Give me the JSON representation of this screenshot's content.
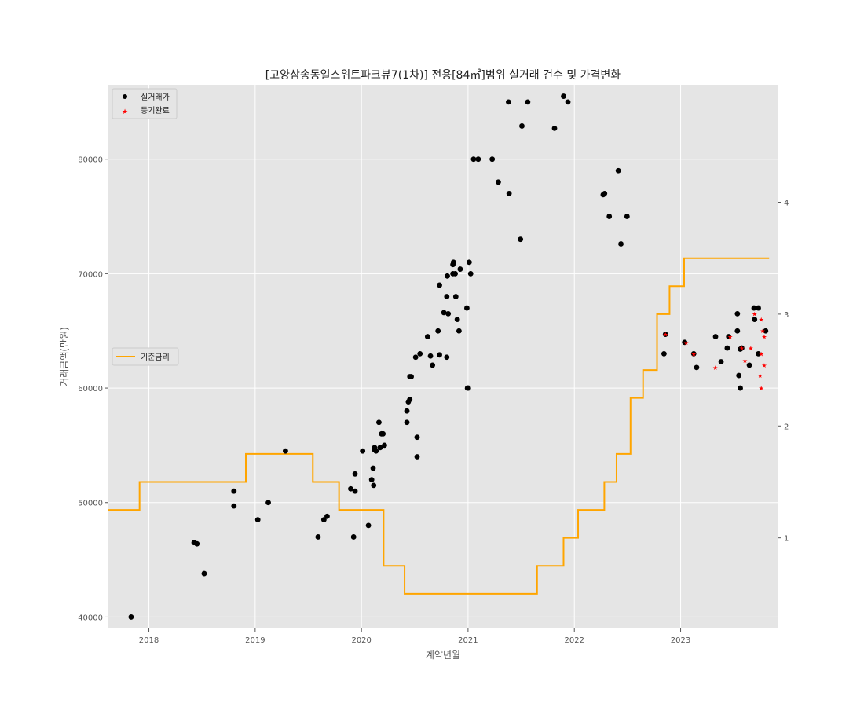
{
  "chart_data": {
    "type": "scatter",
    "title": "[고양삼송동일스위트파크뷰7(1차)] 전용[84㎡]범위 실거래 건수 및 가격변화",
    "xlabel": "계약년월",
    "ylabel": "거래금액(만원)",
    "xlim": [
      "2017-08-15",
      "2023-11-30"
    ],
    "ylim": [
      39000,
      86500
    ],
    "y2lim": [
      0.19,
      5.05
    ],
    "x_ticks": [
      "2018",
      "2019",
      "2020",
      "2021",
      "2022",
      "2023"
    ],
    "y_ticks": [
      40000,
      50000,
      60000,
      70000,
      80000
    ],
    "y2_ticks": [
      1,
      2,
      3,
      4
    ],
    "grid": true,
    "legend_series_placement": "top-left",
    "legend_rate_placement": "center-left",
    "series": [
      {
        "name": "실거래가",
        "color": "#000000",
        "marker": "circle",
        "points": [
          [
            "2017-11-01",
            40000
          ],
          [
            "2018-06-05",
            46500
          ],
          [
            "2018-06-15",
            46400
          ],
          [
            "2018-07-10",
            43800
          ],
          [
            "2018-10-20",
            51000
          ],
          [
            "2018-10-20",
            49700
          ],
          [
            "2019-01-10",
            48500
          ],
          [
            "2019-02-15",
            50000
          ],
          [
            "2019-04-15",
            54500
          ],
          [
            "2019-08-05",
            47000
          ],
          [
            "2019-08-25",
            48500
          ],
          [
            "2019-09-05",
            48800
          ],
          [
            "2019-11-25",
            51200
          ],
          [
            "2019-12-05",
            47000
          ],
          [
            "2019-12-10",
            51000
          ],
          [
            "2019-12-10",
            52500
          ],
          [
            "2020-01-05",
            54500
          ],
          [
            "2020-01-25",
            48000
          ],
          [
            "2020-02-05",
            52000
          ],
          [
            "2020-02-10",
            53000
          ],
          [
            "2020-02-12",
            51500
          ],
          [
            "2020-02-15",
            54600
          ],
          [
            "2020-02-15",
            54800
          ],
          [
            "2020-02-20",
            54500
          ],
          [
            "2020-03-01",
            57000
          ],
          [
            "2020-03-05",
            54800
          ],
          [
            "2020-03-10",
            56000
          ],
          [
            "2020-03-15",
            56000
          ],
          [
            "2020-03-20",
            55000
          ],
          [
            "2020-06-05",
            58000
          ],
          [
            "2020-06-05",
            57000
          ],
          [
            "2020-06-10",
            58800
          ],
          [
            "2020-06-15",
            59000
          ],
          [
            "2020-06-15",
            61000
          ],
          [
            "2020-06-20",
            61000
          ],
          [
            "2020-07-05",
            62700
          ],
          [
            "2020-07-10",
            54000
          ],
          [
            "2020-07-10",
            55700
          ],
          [
            "2020-07-20",
            63000
          ],
          [
            "2020-08-15",
            64500
          ],
          [
            "2020-08-25",
            62800
          ],
          [
            "2020-09-01",
            62000
          ],
          [
            "2020-09-20",
            65000
          ],
          [
            "2020-09-25",
            69000
          ],
          [
            "2020-09-25",
            62900
          ],
          [
            "2020-10-10",
            66600
          ],
          [
            "2020-10-20",
            62700
          ],
          [
            "2020-10-20",
            68000
          ],
          [
            "2020-10-22",
            69800
          ],
          [
            "2020-10-25",
            66500
          ],
          [
            "2020-11-10",
            70000
          ],
          [
            "2020-11-10",
            70800
          ],
          [
            "2020-11-12",
            71000
          ],
          [
            "2020-11-18",
            70000
          ],
          [
            "2020-11-20",
            68000
          ],
          [
            "2020-11-25",
            66000
          ],
          [
            "2020-12-01",
            65000
          ],
          [
            "2020-12-05",
            70400
          ],
          [
            "2020-12-28",
            67000
          ],
          [
            "2020-12-30",
            60000
          ],
          [
            "2021-01-02",
            60000
          ],
          [
            "2021-01-05",
            71000
          ],
          [
            "2021-01-10",
            70000
          ],
          [
            "2021-01-20",
            80000
          ],
          [
            "2021-02-05",
            80000
          ],
          [
            "2021-03-25",
            80000
          ],
          [
            "2021-04-15",
            78000
          ],
          [
            "2021-05-20",
            85000
          ],
          [
            "2021-05-22",
            77000
          ],
          [
            "2021-06-30",
            73000
          ],
          [
            "2021-07-05",
            82900
          ],
          [
            "2021-07-25",
            85000
          ],
          [
            "2021-10-25",
            82700
          ],
          [
            "2021-11-25",
            85500
          ],
          [
            "2021-12-10",
            85000
          ],
          [
            "2022-04-10",
            76900
          ],
          [
            "2022-04-15",
            77000
          ],
          [
            "2022-05-01",
            75000
          ],
          [
            "2022-06-01",
            79000
          ],
          [
            "2022-06-10",
            72600
          ],
          [
            "2022-07-01",
            75000
          ],
          [
            "2022-11-05",
            63000
          ],
          [
            "2022-11-10",
            64700
          ],
          [
            "2023-01-15",
            64000
          ],
          [
            "2023-02-15",
            63000
          ],
          [
            "2023-02-25",
            61800
          ],
          [
            "2023-05-01",
            64500
          ],
          [
            "2023-05-20",
            62300
          ],
          [
            "2023-06-10",
            63500
          ],
          [
            "2023-06-15",
            64500
          ],
          [
            "2023-07-15",
            66500
          ],
          [
            "2023-07-15",
            65000
          ],
          [
            "2023-07-20",
            61100
          ],
          [
            "2023-07-25",
            60000
          ],
          [
            "2023-07-25",
            63400
          ],
          [
            "2023-07-30",
            63500
          ],
          [
            "2023-08-25",
            62000
          ],
          [
            "2023-09-10",
            67000
          ],
          [
            "2023-09-12",
            66000
          ],
          [
            "2023-09-25",
            67000
          ],
          [
            "2023-09-25",
            63000
          ],
          [
            "2023-10-20",
            65000
          ]
        ]
      },
      {
        "name": "등기완료",
        "color": "#ff0000",
        "marker": "star",
        "points": [
          [
            "2022-11-10",
            64700
          ],
          [
            "2023-01-20",
            64000
          ],
          [
            "2023-02-15",
            63000
          ],
          [
            "2023-04-30",
            61800
          ],
          [
            "2023-06-20",
            64500
          ],
          [
            "2023-07-30",
            63500
          ],
          [
            "2023-08-10",
            62400
          ],
          [
            "2023-08-30",
            63500
          ],
          [
            "2023-09-12",
            66500
          ],
          [
            "2023-10-01",
            61100
          ],
          [
            "2023-10-05",
            66000
          ],
          [
            "2023-10-05",
            63000
          ],
          [
            "2023-10-10",
            65000
          ],
          [
            "2023-10-15",
            64500
          ],
          [
            "2023-10-05",
            60000
          ],
          [
            "2023-10-15",
            62000
          ]
        ]
      }
    ],
    "rate_series": {
      "name": "기준금리",
      "color": "#ffa500",
      "axis": "right",
      "steps": [
        [
          "2017-08-15",
          1.25
        ],
        [
          "2017-11-30",
          1.5
        ],
        [
          "2018-11-30",
          1.75
        ],
        [
          "2019-07-18",
          1.5
        ],
        [
          "2019-10-16",
          1.25
        ],
        [
          "2020-03-17",
          0.75
        ],
        [
          "2020-05-28",
          0.5
        ],
        [
          "2021-08-26",
          0.75
        ],
        [
          "2021-11-25",
          1.0
        ],
        [
          "2022-01-14",
          1.25
        ],
        [
          "2022-04-14",
          1.5
        ],
        [
          "2022-05-26",
          1.75
        ],
        [
          "2022-07-13",
          2.25
        ],
        [
          "2022-08-25",
          2.5
        ],
        [
          "2022-10-12",
          3.0
        ],
        [
          "2022-11-24",
          3.25
        ],
        [
          "2023-01-13",
          3.5
        ],
        [
          "2023-11-01",
          3.5
        ]
      ]
    }
  }
}
